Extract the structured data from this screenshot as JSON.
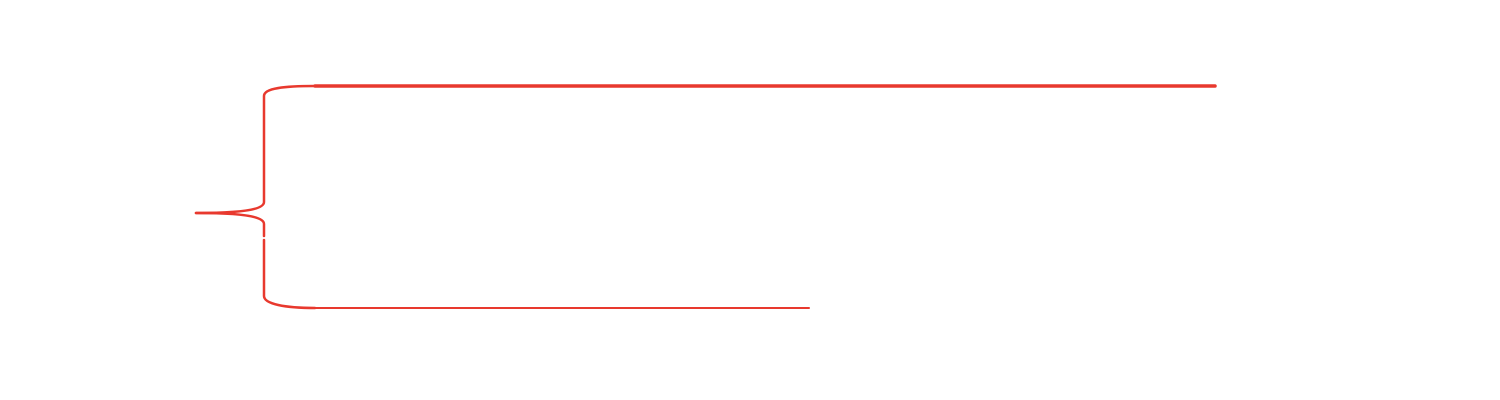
{
  "diagram": {
    "stroke_color": "#e8392e",
    "shape": "left-curly-brace",
    "branches": [
      "upper-branch-line",
      "lower-branch-line"
    ]
  }
}
